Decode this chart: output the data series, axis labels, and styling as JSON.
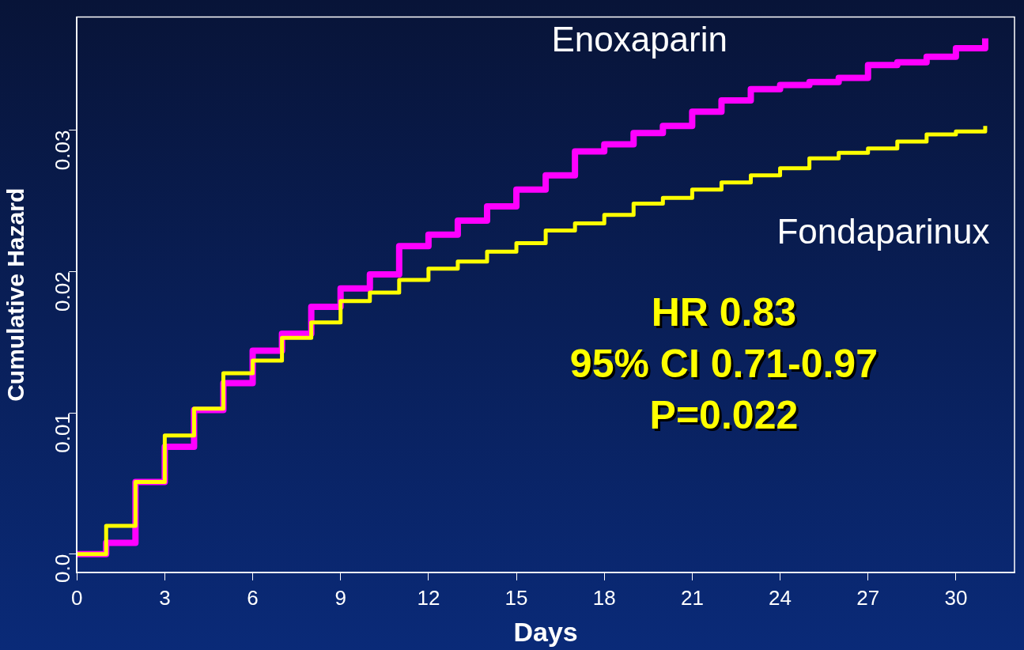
{
  "chart_data": {
    "type": "step",
    "xlabel": "Days",
    "ylabel": "Cumulative Hazard",
    "x": [
      0,
      1,
      2,
      3,
      4,
      5,
      6,
      7,
      8,
      9,
      10,
      11,
      12,
      13,
      14,
      15,
      16,
      17,
      18,
      19,
      20,
      21,
      22,
      23,
      24,
      25,
      26,
      27,
      28,
      29,
      30,
      31
    ],
    "series": [
      {
        "name": "Enoxaparin",
        "color": "#ff00ff",
        "values": [
          0,
          0.0008,
          0.0051,
          0.0076,
          0.0102,
          0.0121,
          0.0144,
          0.0156,
          0.0175,
          0.0188,
          0.0198,
          0.0218,
          0.0226,
          0.0236,
          0.0246,
          0.0258,
          0.0268,
          0.0285,
          0.029,
          0.0298,
          0.0303,
          0.0313,
          0.0321,
          0.0329,
          0.0332,
          0.0334,
          0.0337,
          0.0346,
          0.0348,
          0.0352,
          0.0358,
          0.0365
        ]
      },
      {
        "name": "Fondaparinux",
        "color": "#ffff00",
        "values": [
          0,
          0.002,
          0.0051,
          0.0084,
          0.0103,
          0.0128,
          0.0137,
          0.0153,
          0.0164,
          0.0179,
          0.0185,
          0.0194,
          0.0202,
          0.0207,
          0.0214,
          0.022,
          0.0229,
          0.0234,
          0.024,
          0.0248,
          0.0252,
          0.0258,
          0.0263,
          0.0268,
          0.0273,
          0.028,
          0.0284,
          0.0287,
          0.0292,
          0.0297,
          0.0299,
          0.0303
        ]
      }
    ],
    "xlim": [
      0,
      32
    ],
    "xticks": [
      0,
      3,
      6,
      9,
      12,
      15,
      18,
      21,
      24,
      27,
      30
    ],
    "ylim": [
      -0.0013,
      0.038
    ],
    "yticks": [
      {
        "value": 0,
        "label": "0.0"
      },
      0.01,
      0.02,
      0.03
    ],
    "annotations": [
      "HR 0.83",
      "95% CI 0.71-0.97",
      "P=0.022"
    ],
    "grid": false,
    "legend": false,
    "marker": "none",
    "line_style": "solid"
  }
}
